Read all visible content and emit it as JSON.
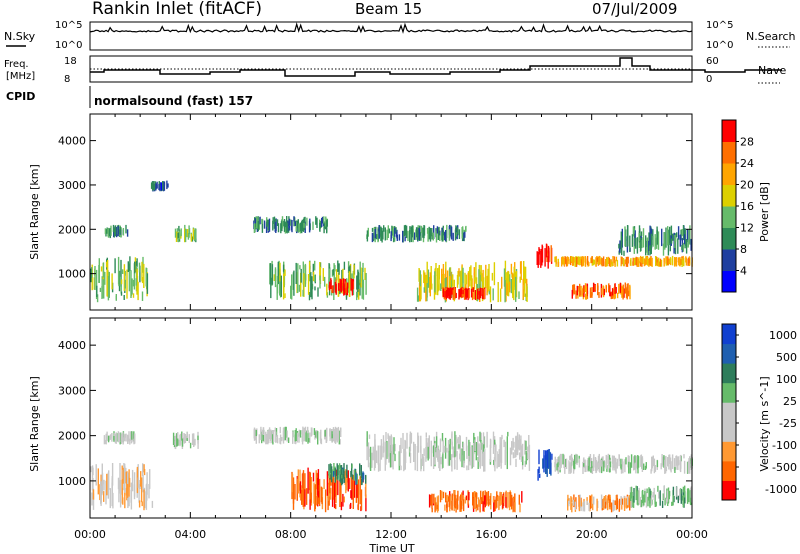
{
  "header": {
    "site": "Rankin Inlet (fitACF)",
    "beam": "Beam 15",
    "date": "07/Jul/2009"
  },
  "strip_labels": {
    "nsky": "N.Sky",
    "nsky_ticks": [
      "10^5",
      "10^0"
    ],
    "nsearch": "N.Search",
    "nsearch_ticks": [
      "10^5",
      "10^0"
    ],
    "freq": "Freq.",
    "freq_unit": "[MHz]",
    "freq_ticks": [
      "18",
      "8"
    ],
    "nave": "Nave",
    "nave_ticks": [
      "60",
      "0"
    ],
    "cpid": "CPID",
    "program": "normalsound (fast) 157"
  },
  "colors": {
    "background": "#ffffff",
    "power_scale": [
      "#0000ff",
      "#1f3f9f",
      "#2e8b57",
      "#66bb6a",
      "#ddd000",
      "#ffa500",
      "#ff6f00",
      "#ff0000"
    ],
    "velocity_scale": [
      "#ff0000",
      "#ff6600",
      "#ff9933",
      "#c8c8c8",
      "#c8c8c8",
      "#66bb6a",
      "#2e7d5b",
      "#1f5fb0",
      "#1040d0"
    ]
  },
  "chart_data": [
    {
      "type": "heatmap",
      "name": "power",
      "xlabel": "",
      "ylabel": "Slant Range [km]",
      "x_ticks": [
        "00:00",
        "04:00",
        "08:00",
        "12:00",
        "16:00",
        "20:00",
        "00:00"
      ],
      "y_ticks": [
        1000,
        2000,
        3000,
        4000
      ],
      "ylim": [
        180,
        4600
      ],
      "colorbar": {
        "label": "Power [dB]",
        "ticks": [
          4,
          8,
          12,
          16,
          20,
          24,
          28
        ]
      },
      "echo_regions": [
        {
          "t": [
            0.5,
            1.5
          ],
          "r": [
            1800,
            2100
          ],
          "level": 2
        },
        {
          "t": [
            2.4,
            3.1
          ],
          "r": [
            2850,
            3100
          ],
          "level": 1
        },
        {
          "t": [
            0,
            2.3
          ],
          "r": [
            350,
            1400
          ],
          "level": 3
        },
        {
          "t": [
            3.3,
            4.2
          ],
          "r": [
            1700,
            2100
          ],
          "level": 3
        },
        {
          "t": [
            6.5,
            9.5
          ],
          "r": [
            1900,
            2300
          ],
          "level": 2
        },
        {
          "t": [
            7,
            11
          ],
          "r": [
            400,
            1300
          ],
          "level": 3
        },
        {
          "t": [
            9.5,
            10.5
          ],
          "r": [
            500,
            900
          ],
          "level": 7
        },
        {
          "t": [
            11,
            15
          ],
          "r": [
            1700,
            2100
          ],
          "level": 2
        },
        {
          "t": [
            13,
            17.5
          ],
          "r": [
            350,
            1300
          ],
          "level": 4
        },
        {
          "t": [
            14,
            15.8
          ],
          "r": [
            400,
            700
          ],
          "level": 7
        },
        {
          "t": [
            17.8,
            18.4
          ],
          "r": [
            1100,
            1700
          ],
          "level": 7
        },
        {
          "t": [
            18.5,
            24
          ],
          "r": [
            1150,
            1400
          ],
          "level": 5
        },
        {
          "t": [
            19.2,
            21.5
          ],
          "r": [
            400,
            800
          ],
          "level": 6
        },
        {
          "t": [
            21,
            24
          ],
          "r": [
            1400,
            2100
          ],
          "level": 2
        }
      ]
    },
    {
      "type": "heatmap",
      "name": "velocity",
      "xlabel": "Time UT",
      "ylabel": "Slant Range [km]",
      "x_ticks": [
        "00:00",
        "04:00",
        "08:00",
        "12:00",
        "16:00",
        "20:00",
        "00:00"
      ],
      "y_ticks": [
        1000,
        2000,
        3000,
        4000
      ],
      "ylim": [
        180,
        4600
      ],
      "colorbar": {
        "label": "Velocity [m s^-1]",
        "ticks": [
          "1000",
          "500",
          "100",
          "25",
          "-25",
          "-100",
          "-500",
          "-1000"
        ]
      },
      "echo_regions": [
        {
          "t": [
            0.5,
            1.8
          ],
          "r": [
            1800,
            2100
          ],
          "level": 4
        },
        {
          "t": [
            0,
            2.5
          ],
          "r": [
            350,
            1400
          ],
          "level": 3
        },
        {
          "t": [
            3.3,
            4.3
          ],
          "r": [
            1700,
            2100
          ],
          "level": 4
        },
        {
          "t": [
            6.5,
            10
          ],
          "r": [
            1800,
            2200
          ],
          "level": 4
        },
        {
          "t": [
            8,
            11
          ],
          "r": [
            300,
            1300
          ],
          "level": 1
        },
        {
          "t": [
            9.5,
            11
          ],
          "r": [
            900,
            1400
          ],
          "level": 6
        },
        {
          "t": [
            11,
            17.5
          ],
          "r": [
            1200,
            2100
          ],
          "level": 4
        },
        {
          "t": [
            13.5,
            17.2
          ],
          "r": [
            300,
            800
          ],
          "level": 1
        },
        {
          "t": [
            17.8,
            18.4
          ],
          "r": [
            1000,
            1750
          ],
          "level": 8
        },
        {
          "t": [
            18.5,
            24
          ],
          "r": [
            1150,
            1600
          ],
          "level": 4
        },
        {
          "t": [
            19,
            21.5
          ],
          "r": [
            300,
            700
          ],
          "level": 2
        },
        {
          "t": [
            21.5,
            24
          ],
          "r": [
            400,
            900
          ],
          "level": 5
        }
      ]
    }
  ]
}
